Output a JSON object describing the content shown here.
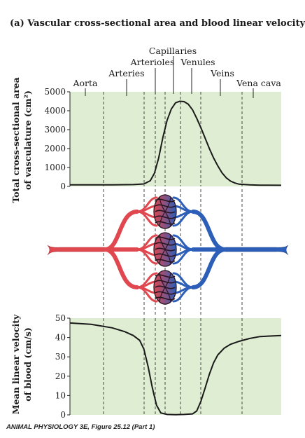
{
  "title": "(a) Vascular cross-sectional area and blood linear velocity",
  "credit": "ANIMAL PHYSIOLOGY 3E, Figure 25.12 (Part 1)",
  "colors": {
    "plot_background": "#dfedd2",
    "curve": "#1a1a1a",
    "arterial": "#e0474f",
    "venous": "#2d5fb8",
    "capillary_outline": "#2a1420"
  },
  "vessel_labels": [
    "Aorta",
    "Arteries",
    "Arterioles",
    "Capillaries",
    "Venules",
    "Veins",
    "Vena cava"
  ],
  "chart_data": [
    {
      "type": "line",
      "ylabel": "Total cross-sectional area of vasculature (cm²)",
      "ylim": [
        0,
        5000
      ],
      "yticks": [
        "5000",
        "4000",
        "3000",
        "2000",
        "1000",
        "0"
      ],
      "grid": false,
      "series": [
        {
          "points": [
            [
              0.0,
              80
            ],
            [
              0.1,
              80
            ],
            [
              0.2,
              85
            ],
            [
              0.3,
              95
            ],
            [
              0.35,
              130
            ],
            [
              0.38,
              300
            ],
            [
              0.4,
              700
            ],
            [
              0.42,
              1500
            ],
            [
              0.44,
              2600
            ],
            [
              0.46,
              3500
            ],
            [
              0.48,
              4100
            ],
            [
              0.5,
              4420
            ],
            [
              0.52,
              4500
            ],
            [
              0.54,
              4480
            ],
            [
              0.56,
              4350
            ],
            [
              0.58,
              4050
            ],
            [
              0.6,
              3600
            ],
            [
              0.62,
              3100
            ],
            [
              0.64,
              2550
            ],
            [
              0.66,
              2000
            ],
            [
              0.68,
              1500
            ],
            [
              0.7,
              1080
            ],
            [
              0.72,
              720
            ],
            [
              0.74,
              450
            ],
            [
              0.76,
              280
            ],
            [
              0.78,
              180
            ],
            [
              0.8,
              120
            ],
            [
              0.85,
              80
            ],
            [
              0.9,
              65
            ],
            [
              1.0,
              60
            ]
          ]
        }
      ]
    },
    {
      "type": "line",
      "ylabel": "Mean linear velocity of blood (cm/s)",
      "ylim": [
        0,
        50
      ],
      "yticks": [
        "50",
        "40",
        "30",
        "20",
        "10",
        "0"
      ],
      "grid": false,
      "series": [
        {
          "points": [
            [
              0.0,
              47.5
            ],
            [
              0.1,
              46.8
            ],
            [
              0.2,
              45
            ],
            [
              0.26,
              43
            ],
            [
              0.3,
              41
            ],
            [
              0.33,
              38.5
            ],
            [
              0.35,
              34
            ],
            [
              0.37,
              25
            ],
            [
              0.39,
              14
            ],
            [
              0.41,
              5
            ],
            [
              0.43,
              1
            ],
            [
              0.46,
              0.2
            ],
            [
              0.5,
              0.1
            ],
            [
              0.54,
              0.2
            ],
            [
              0.58,
              0.5
            ],
            [
              0.6,
              2
            ],
            [
              0.62,
              7
            ],
            [
              0.64,
              14
            ],
            [
              0.66,
              21
            ],
            [
              0.68,
              27
            ],
            [
              0.7,
              31
            ],
            [
              0.73,
              34.5
            ],
            [
              0.76,
              36.5
            ],
            [
              0.8,
              38
            ],
            [
              0.85,
              39.5
            ],
            [
              0.9,
              40.5
            ],
            [
              1.0,
              41
            ]
          ]
        }
      ]
    }
  ]
}
